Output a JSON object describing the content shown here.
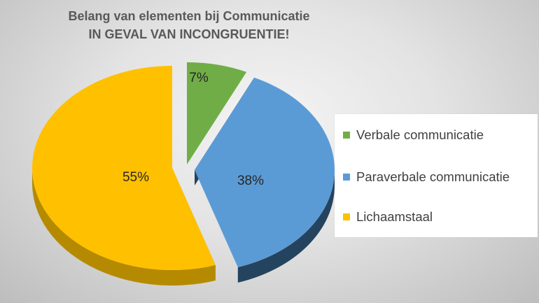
{
  "chart_data": {
    "type": "pie",
    "title": "Belang van elementen bij Communicatie",
    "subtitle": "IN GEVAL VAN INCONGRUENTIE!",
    "slices": [
      {
        "label": "Verbale communicatie",
        "value": 7,
        "data_label": "7%",
        "color": "#70ad47",
        "side_color": "#4e7a30"
      },
      {
        "label": "Paraverbale communicatie",
        "value": 38,
        "data_label": "38%",
        "color": "#5b9bd5",
        "side_color": "#24435e"
      },
      {
        "label": "Lichaamstaal",
        "value": 55,
        "data_label": "55%",
        "color": "#ffc000",
        "side_color": "#b58a00"
      }
    ],
    "legend_position": "right",
    "style": "3d-exploded"
  }
}
